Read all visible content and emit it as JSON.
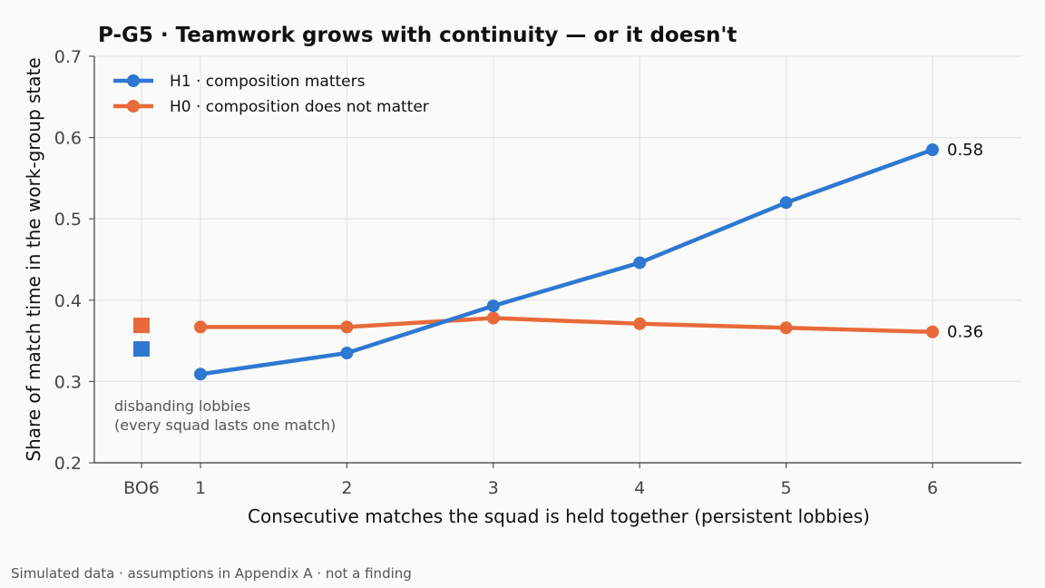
{
  "chart_data": {
    "type": "line",
    "title": "P-G5 · Teamwork grows with continuity — or it doesn't",
    "xlabel": "Consecutive matches the squad is held together (persistent lobbies)",
    "ylabel": "Share of match time in the work-group state",
    "x": [
      1,
      2,
      3,
      4,
      5,
      6
    ],
    "xticks": [
      "1",
      "2",
      "3",
      "4",
      "5",
      "6"
    ],
    "ylim": [
      0.2,
      0.7
    ],
    "yticks": [
      "0.2",
      "0.3",
      "0.4",
      "0.5",
      "0.6",
      "0.7"
    ],
    "grid": true,
    "legend_position": "top-left",
    "series": [
      {
        "name": "H1 · composition matters",
        "color": "#2e78d2",
        "values": [
          0.309,
          0.335,
          0.393,
          0.446,
          0.52,
          0.585
        ],
        "end_label": "0.58",
        "baseline": 0.34
      },
      {
        "name": "H0 · composition does not matter",
        "color": "#e8693a",
        "values": [
          0.367,
          0.367,
          0.378,
          0.371,
          0.366,
          0.361
        ],
        "end_label": "0.36",
        "baseline": 0.369
      }
    ],
    "baseline_category": "BO6",
    "annotation": [
      "disbanding lobbies",
      "(every squad lasts one match)"
    ]
  },
  "footer": "Simulated data · assumptions in Appendix A · not a finding"
}
